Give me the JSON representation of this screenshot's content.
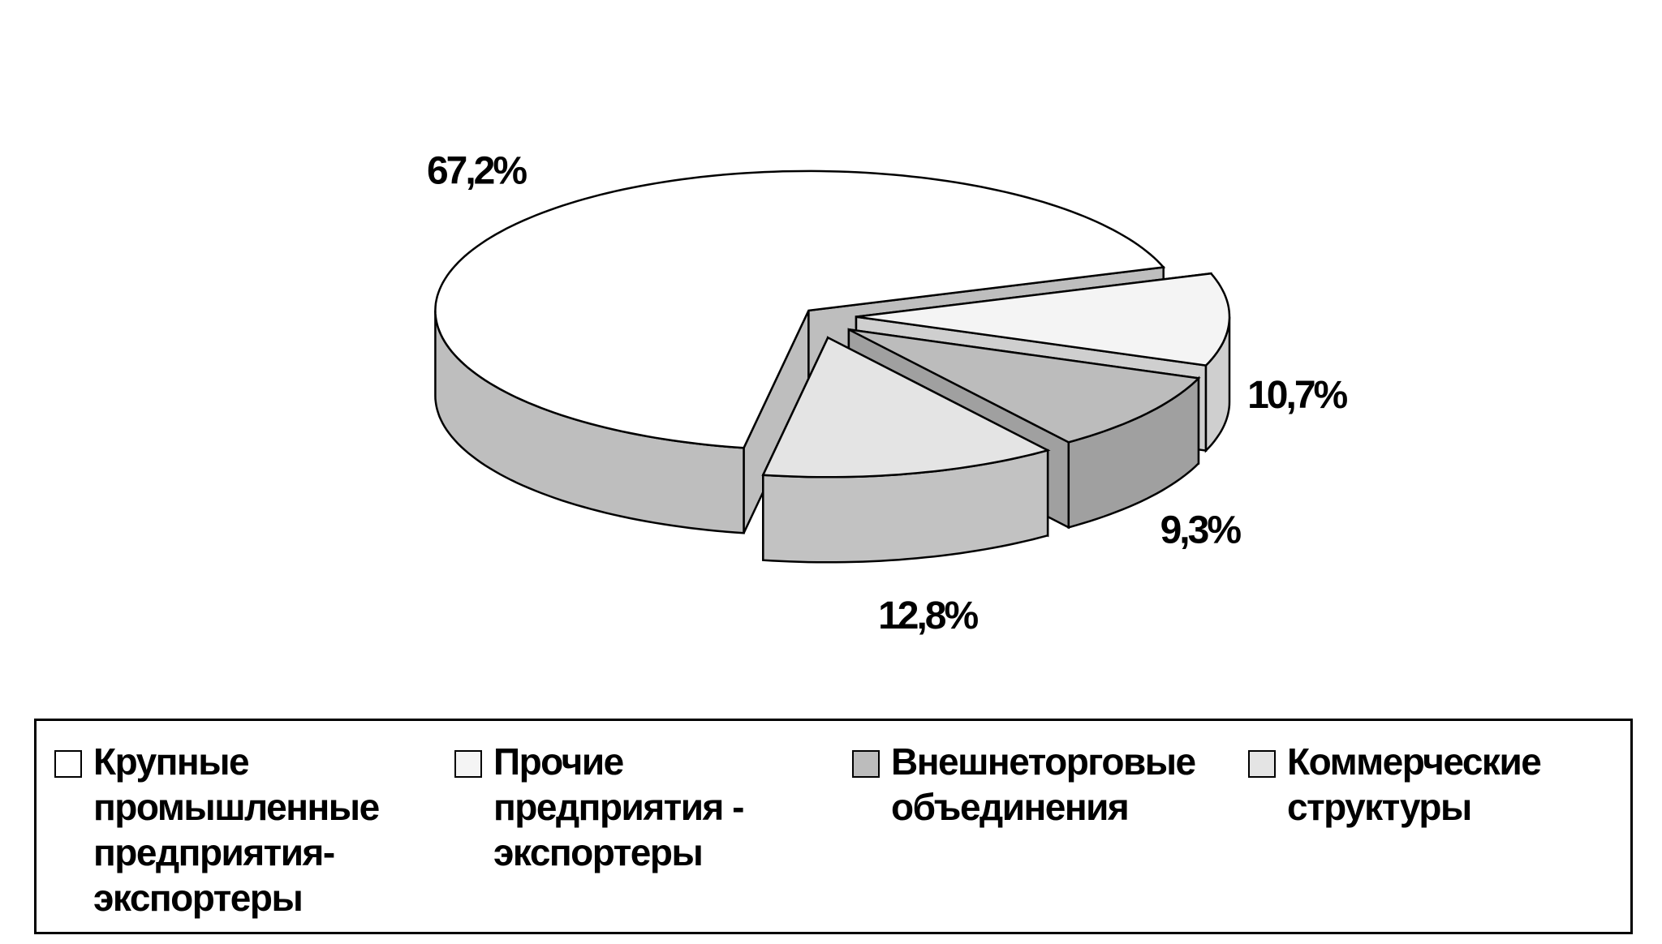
{
  "chart_data": {
    "type": "pie",
    "categories": [
      "Крупные промышленные предприятия-экспортеры",
      "Прочие предприятия - экспортеры",
      "Внешнеторговые объединения",
      "Коммерческие структуры"
    ],
    "values": [
      67.2,
      10.7,
      9.3,
      12.8
    ],
    "value_labels": [
      "67,2%",
      "10,7%",
      "9,3%",
      "12,8%"
    ],
    "colors": [
      "#ffffff",
      "#f4f4f4",
      "#bcbcbc",
      "#e4e4e4"
    ],
    "legend": "bottom"
  }
}
